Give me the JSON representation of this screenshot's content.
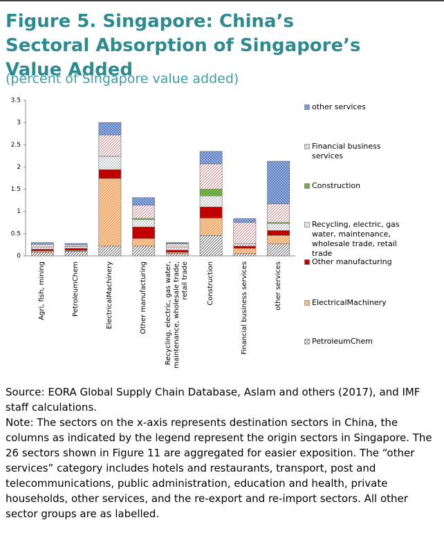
{
  "chart_data": {
    "type": "stacked_bar",
    "title": "Figure 5. Singapore: China’s Sectoral Absorption of Singapore’s Value Added",
    "subtitle": "(percent of Singapore value added)",
    "categories": [
      "Agri, fish, mining",
      "PetroleumChem",
      "ElectricalMachinery",
      "Other manufacturing",
      "Recycling, electric, gas water, maintenance, wholesale trade, retail trade",
      "Construction",
      "Financial business services",
      "other services"
    ],
    "series": [
      {
        "name": "PetroleumChem",
        "color": "#555555",
        "values": [
          0.08,
          0.1,
          0.22,
          0.22,
          0.05,
          0.46,
          0.05,
          0.27
        ]
      },
      {
        "name": "ElectricalMachinery",
        "color": "#f0a060",
        "values": [
          0.03,
          0.02,
          1.52,
          0.17,
          0.03,
          0.39,
          0.12,
          0.19
        ]
      },
      {
        "name": "Other manufacturing",
        "color": "#c00000",
        "values": [
          0.04,
          0.05,
          0.2,
          0.26,
          0.05,
          0.25,
          0.05,
          0.11
        ]
      },
      {
        "name": "Recycling, electric, gas water, maintenance, wholesale trade, retail trade",
        "color": "#777777",
        "values": [
          0.05,
          0.04,
          0.3,
          0.17,
          0.07,
          0.25,
          0.05,
          0.16
        ]
      },
      {
        "name": "Construction",
        "color": "#70ad47",
        "values": [
          0,
          0,
          0,
          0.02,
          0,
          0.15,
          0,
          0.02
        ]
      },
      {
        "name": "Financial business services",
        "color": "#e0707a",
        "values": [
          0.06,
          0.04,
          0.48,
          0.3,
          0.07,
          0.57,
          0.48,
          0.42
        ]
      },
      {
        "name": "other services",
        "color": "#5b80c8",
        "values": [
          0.04,
          0.03,
          0.28,
          0.17,
          0.03,
          0.28,
          0.09,
          0.96
        ]
      }
    ],
    "ylim": [
      0,
      3.5
    ],
    "yticks": [
      0,
      0.5,
      1,
      1.5,
      2,
      2.5,
      3,
      3.5
    ],
    "grid": false,
    "source": "Source: EORA Global Supply Chain Database, Aslam and others (2017), and IMF staff calculations.",
    "note": "Note: The sectors on the x-axis represents destination sectors in China, the columns as indicated by the legend represent the origin sectors in Singapore. The 26 sectors shown in Figure 11 are aggregated for easier exposition. The “other services” category includes hotels and restaurants, transport, post and telecommunications, public administration, education and health, private households, other services, and the re-export and re-import sectors. All other sector groups are as labelled."
  }
}
